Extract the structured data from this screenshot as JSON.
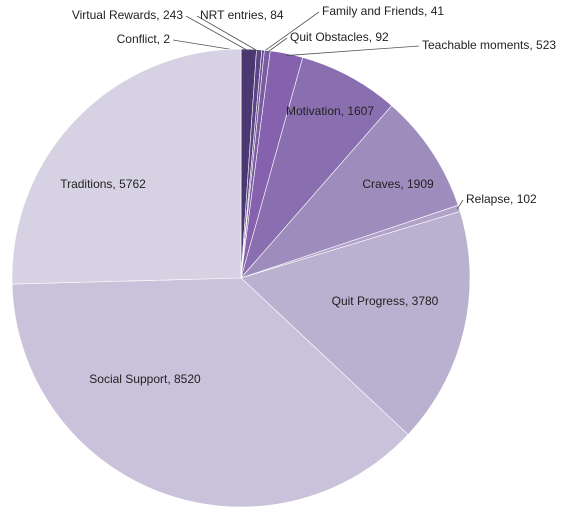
{
  "chart_data": {
    "type": "pie",
    "categories": [
      "Conflict",
      "Virtual Rewards",
      "NRT entries",
      "Family and Friends",
      "Quit Obstacles",
      "Teachable moments",
      "Motivation",
      "Craves",
      "Relapse",
      "Quit Progress",
      "Social Support",
      "Traditions"
    ],
    "values": [
      2,
      243,
      84,
      41,
      92,
      523,
      1607,
      1909,
      102,
      3780,
      8520,
      5762
    ],
    "value_labels": [
      "Conflict, 2",
      "Virtual Rewards, 243",
      "NRT entries, 84",
      "Family and Friends, 41",
      "Quit Obstacles, 92",
      "Teachable moments, 523",
      "Motivation, 1607",
      "Craves, 1909",
      "Relapse, 102",
      "Quit Progress, 3780",
      "Social Support, 8520",
      "Traditions, 5762"
    ],
    "colors": [
      "#3f2f5e",
      "#4b3872",
      "#5b4585",
      "#6a5091",
      "#7a5ca0",
      "#8561ae",
      "#8a6fb0",
      "#9e8dbc",
      "#b0a2c8",
      "#bab0cf",
      "#cac2da",
      "#d7d2e3"
    ]
  }
}
